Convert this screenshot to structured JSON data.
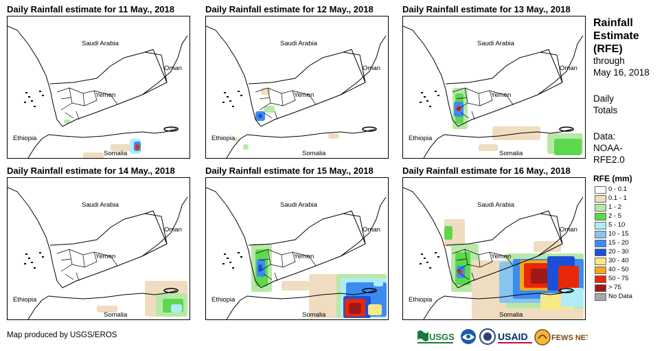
{
  "panels": [
    {
      "title": "Daily Rainfall estimate for 11 May., 2018"
    },
    {
      "title": "Daily Rainfall estimate for 12 May., 2018"
    },
    {
      "title": "Daily Rainfall estimate for 13 May., 2018"
    },
    {
      "title": "Daily Rainfall estimate for 14 May., 2018"
    },
    {
      "title": "Daily Rainfall estimate for 15 May., 2018"
    },
    {
      "title": "Daily Rainfall estimate for 16 May., 2018"
    }
  ],
  "map_labels": {
    "saudi": "Saudi Arabia",
    "oman": "Oman",
    "yemen": "Yemen",
    "ethiopia": "Ethiopia",
    "somalia": "Somalia"
  },
  "sidebar": {
    "title_line1": "Rainfall",
    "title_line2": "Estimate",
    "title_line3": "(RFE)",
    "through": "through",
    "date": "May 16, 2018",
    "daily": "Daily",
    "totals": "Totals",
    "data_label": "Data:",
    "data_source1": "NOAA-",
    "data_source2": "RFE2.0"
  },
  "legend": {
    "title": "RFE (mm)",
    "items": [
      {
        "label": "0 - 0.1",
        "color": "#ffffff"
      },
      {
        "label": "0.1 - 1",
        "color": "#f0dcc0"
      },
      {
        "label": "1 - 2",
        "color": "#b8e8a8"
      },
      {
        "label": "2 - 5",
        "color": "#5cd84c"
      },
      {
        "label": "5 - 10",
        "color": "#b0ecf8"
      },
      {
        "label": "10 - 15",
        "color": "#88c4f0"
      },
      {
        "label": "15 - 20",
        "color": "#3c8cf0"
      },
      {
        "label": "20 - 30",
        "color": "#1c50d8"
      },
      {
        "label": "30 - 40",
        "color": "#f8e888"
      },
      {
        "label": "40 - 50",
        "color": "#f8a818"
      },
      {
        "label": "50 - 75",
        "color": "#e82808"
      },
      {
        "label": "> 75",
        "color": "#a01818"
      },
      {
        "label": "No Data",
        "color": "#a8a8a8"
      }
    ]
  },
  "footer": {
    "credit": "Map produced by USGS/EROS"
  },
  "logos": {
    "usgs": "USGS",
    "usaid": "USAID",
    "fewsnet": "FEWS NET"
  }
}
